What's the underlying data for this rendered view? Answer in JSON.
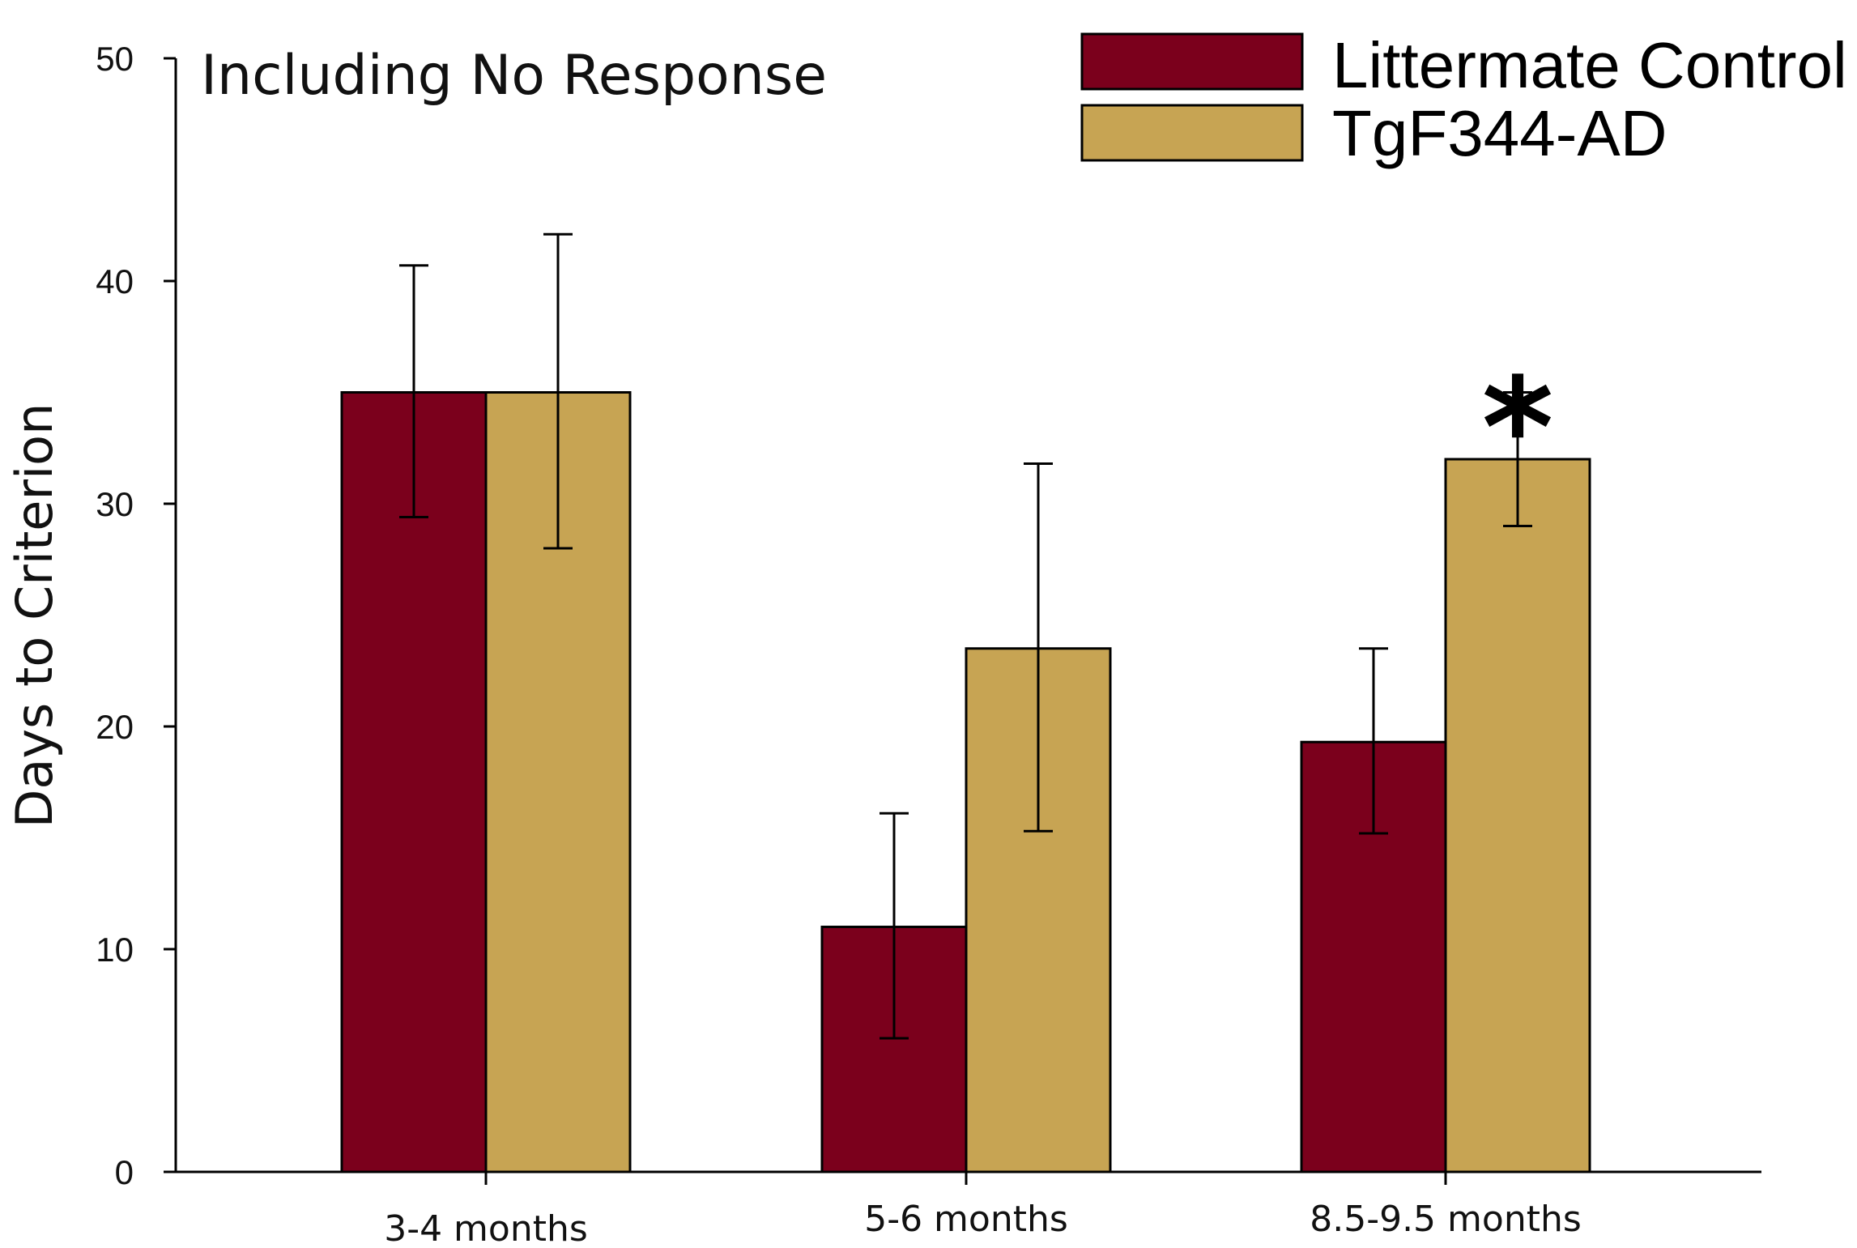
{
  "chart_data": {
    "type": "bar",
    "title": "Including No Response",
    "xlabel": "",
    "ylabel": "Days to Criterion",
    "ylim": [
      0,
      50
    ],
    "yticks": [
      0,
      10,
      20,
      30,
      40,
      50
    ],
    "categories": [
      "3-4 months",
      "5-6 months",
      "8.5-9.5 months"
    ],
    "series": [
      {
        "name": "Littermate Control",
        "color": "#7b001c",
        "values": [
          35,
          11,
          19.3
        ],
        "err_low": [
          29.4,
          6,
          15.2
        ],
        "err_high": [
          40.7,
          16.1,
          23.5
        ]
      },
      {
        "name": "TgF344-AD",
        "color": "#c7a453",
        "values": [
          35,
          23.5,
          32
        ],
        "err_low": [
          28,
          15.3,
          29
        ],
        "err_high": [
          42.1,
          31.8,
          35
        ]
      }
    ],
    "annotations": [
      {
        "text": "*",
        "category": "8.5-9.5 months",
        "series": "TgF344-AD"
      }
    ],
    "legend_position": "top-right",
    "grid": false
  }
}
